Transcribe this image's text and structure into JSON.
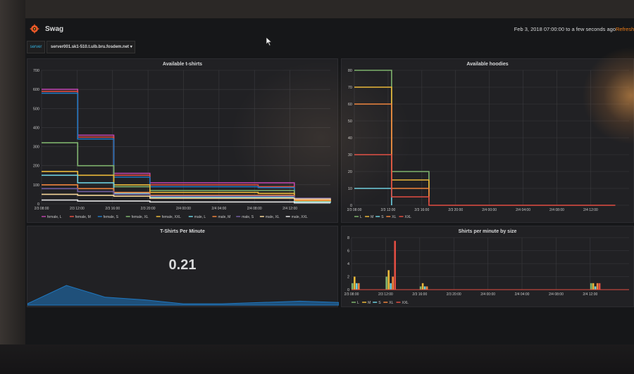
{
  "dashboard": {
    "title": "Swag",
    "time_range": "Feb 3, 2018 07:00:00 to a few seconds ago",
    "refresh_label": "Refresh every"
  },
  "variables": {
    "label": "server",
    "value": "server001.sk1-510.t.ulb.bru.fosdem.net ▾"
  },
  "colors": {
    "background": "#161719",
    "panel": "#212124",
    "accent": "#33b5e5",
    "brand": "#eb7b18"
  },
  "icons": [
    "grafana-logo-icon",
    "mouse-cursor-icon",
    "dropdown-caret-icon"
  ],
  "panels": {
    "tshirts": {
      "title": "Available t-shirts",
      "y_ticks": [
        "700",
        "600",
        "500",
        "400",
        "300",
        "200",
        "100",
        "0"
      ],
      "x_ticks": [
        "2/3 08:00",
        "2/3 12:00",
        "2/3 16:00",
        "2/3 20:00",
        "2/4 00:00",
        "2/4 04:00",
        "2/4 08:00",
        "2/4 12:00"
      ],
      "legend": [
        "female, L",
        "female, M",
        "female, S",
        "female, XL",
        "female, XXL",
        "male, L",
        "male, M",
        "male, S",
        "male, XL",
        "male, XXL"
      ]
    },
    "hoodies": {
      "title": "Available hoodies",
      "y_ticks": [
        "80",
        "70",
        "60",
        "50",
        "40",
        "30",
        "20",
        "10",
        "0"
      ],
      "x_ticks": [
        "2/3 08:00",
        "2/3 12:00",
        "2/3 16:00",
        "2/3 20:00",
        "2/4 00:00",
        "2/4 04:00",
        "2/4 08:00",
        "2/4 12:00"
      ],
      "legend": [
        "L",
        "M",
        "S",
        "XL",
        "XXL"
      ]
    },
    "tpm": {
      "title": "T-Shirts Per Minute",
      "value": "0.21"
    },
    "spm": {
      "title": "Shirts per minute by size",
      "y_ticks": [
        "8",
        "6",
        "4",
        "2",
        "0"
      ],
      "x_ticks": [
        "2/3 08:00",
        "2/3 12:00",
        "2/3 16:00",
        "2/3 20:00",
        "2/4 00:00",
        "2/4 04:00",
        "2/4 08:00",
        "2/4 12:00"
      ],
      "legend": [
        "L",
        "M",
        "S",
        "XL",
        "XXL"
      ]
    }
  },
  "chart_data": [
    {
      "type": "line",
      "title": "Available t-shirts",
      "x": [
        "2/3 08:00",
        "2/3 12:00",
        "2/3 16:00",
        "2/3 20:00",
        "2/4 00:00",
        "2/4 04:00",
        "2/4 08:00",
        "2/4 12:00",
        "2/4 14:00"
      ],
      "ylim": [
        0,
        700
      ],
      "grid": true,
      "legend_position": "bottom",
      "series": [
        {
          "name": "male, M",
          "color": "#ba43a9",
          "values": [
            600,
            360,
            160,
            110,
            110,
            110,
            110,
            20,
            10
          ]
        },
        {
          "name": "male, L",
          "color": "#e24d42",
          "values": [
            590,
            350,
            150,
            100,
            100,
            100,
            90,
            15,
            5
          ]
        },
        {
          "name": "male, S",
          "color": "#1f78c1",
          "values": [
            580,
            340,
            140,
            90,
            90,
            90,
            85,
            15,
            5
          ]
        },
        {
          "name": "female, L",
          "color": "#7eb26d",
          "values": [
            320,
            200,
            90,
            70,
            70,
            70,
            70,
            20,
            10
          ]
        },
        {
          "name": "female, M",
          "color": "#eab839",
          "values": [
            170,
            150,
            100,
            60,
            60,
            60,
            55,
            15,
            10
          ]
        },
        {
          "name": "female, S",
          "color": "#6ed0e0",
          "values": [
            150,
            110,
            55,
            35,
            35,
            35,
            35,
            10,
            5
          ]
        },
        {
          "name": "female, XL",
          "color": "#ef843c",
          "values": [
            100,
            80,
            60,
            45,
            45,
            45,
            45,
            20,
            15
          ]
        },
        {
          "name": "male, XL",
          "color": "#705da0",
          "values": [
            80,
            65,
            50,
            40,
            40,
            40,
            40,
            30,
            25
          ]
        },
        {
          "name": "male, XXL",
          "color": "#f4d598",
          "values": [
            50,
            45,
            40,
            30,
            30,
            30,
            30,
            25,
            20
          ]
        },
        {
          "name": "female, XXL",
          "color": "#e5e5e5",
          "values": [
            20,
            15,
            15,
            10,
            10,
            10,
            10,
            5,
            5
          ]
        }
      ]
    },
    {
      "type": "line",
      "title": "Available hoodies",
      "x": [
        "2/3 08:00",
        "2/3 12:00",
        "2/3 16:00",
        "2/3 20:00",
        "2/4 00:00",
        "2/4 04:00",
        "2/4 08:00",
        "2/4 12:00"
      ],
      "ylim": [
        0,
        80
      ],
      "grid": true,
      "legend_position": "bottom",
      "series": [
        {
          "name": "L",
          "color": "#7eb26d",
          "values": [
            80,
            20,
            8,
            null,
            null,
            null,
            null,
            null
          ]
        },
        {
          "name": "M",
          "color": "#eab839",
          "values": [
            70,
            15,
            5,
            null,
            null,
            null,
            null,
            null
          ]
        },
        {
          "name": "S",
          "color": "#6ed0e0",
          "values": [
            10,
            0,
            null,
            null,
            null,
            null,
            null,
            null
          ]
        },
        {
          "name": "XL",
          "color": "#ef843c",
          "values": [
            60,
            10,
            2,
            null,
            null,
            null,
            null,
            null
          ]
        },
        {
          "name": "XXL",
          "color": "#e24d42",
          "values": [
            30,
            5,
            0,
            0,
            0,
            0,
            0,
            0
          ]
        }
      ]
    },
    {
      "type": "area",
      "title": "T-Shirts Per Minute",
      "x": [
        "2/3 08:00",
        "2/3 10:00",
        "2/3 12:00",
        "2/3 16:00",
        "2/3 20:00",
        "2/4 00:00",
        "2/4 06:00",
        "2/4 08:00",
        "2/4 12:00"
      ],
      "series": [
        {
          "name": "",
          "color": "#1f78c1",
          "values": [
            0.1,
            1.5,
            0.6,
            0.4,
            0.1,
            0.1,
            0.2,
            0.3,
            0.2
          ]
        }
      ],
      "value": 0.21
    },
    {
      "type": "bar",
      "title": "Shirts per minute by size",
      "x": [
        "2/3 08:00",
        "2/3 12:00",
        "2/3 16:00",
        "2/3 20:00",
        "2/4 00:00",
        "2/4 04:00",
        "2/4 08:00",
        "2/4 12:00"
      ],
      "ylim": [
        0,
        8
      ],
      "grid": true,
      "legend_position": "bottom",
      "series": [
        {
          "name": "L",
          "color": "#7eb26d",
          "values": [
            1,
            2,
            0.5,
            0,
            0,
            0,
            0,
            1
          ]
        },
        {
          "name": "M",
          "color": "#eab839",
          "values": [
            2,
            3,
            1,
            0,
            0,
            0,
            0,
            1
          ]
        },
        {
          "name": "S",
          "color": "#6ed0e0",
          "values": [
            1,
            1,
            0.5,
            0,
            0,
            0,
            0,
            0.5
          ]
        },
        {
          "name": "XL",
          "color": "#ef843c",
          "values": [
            1,
            2,
            0.5,
            0,
            0,
            0,
            0,
            1
          ]
        },
        {
          "name": "XXL",
          "color": "#e24d42",
          "values": [
            0,
            7.5,
            0,
            0,
            0,
            0,
            0,
            1
          ]
        }
      ]
    }
  ]
}
